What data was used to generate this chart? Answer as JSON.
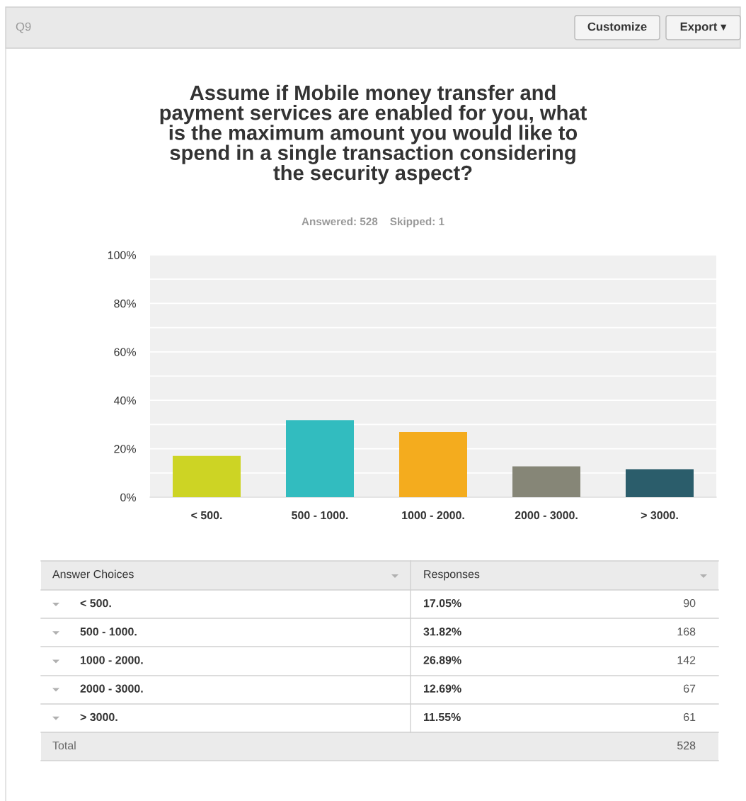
{
  "chart_data": {
    "type": "bar",
    "title": "Assume if Mobile money transfer and\npayment services are enabled for you, what\nis the maximum amount you would like to\nspend in a single transaction considering\nthe security aspect?",
    "subtitle": "Answered: 528    Skipped: 1",
    "categories": [
      "< 500.",
      "500 - 1000.",
      "1000 - 2000.",
      "2000 - 3000.",
      "> 3000."
    ],
    "values": [
      17.05,
      31.82,
      26.89,
      12.69,
      11.55
    ],
    "colors": [
      "#cdd424",
      "#32bcbf",
      "#f4ac1e",
      "#868677",
      "#2b5d6b"
    ],
    "ylim": [
      0,
      100
    ],
    "yticks": [
      {
        "value": 0,
        "label": "0%"
      },
      {
        "value": 10,
        "label": null
      },
      {
        "value": 20,
        "label": "20%"
      },
      {
        "value": 30,
        "label": null
      },
      {
        "value": 40,
        "label": "40%"
      },
      {
        "value": 50,
        "label": null
      },
      {
        "value": 60,
        "label": "60%"
      },
      {
        "value": 70,
        "label": null
      },
      {
        "value": 80,
        "label": "80%"
      },
      {
        "value": 90,
        "label": null
      },
      {
        "value": 100,
        "label": "100%"
      }
    ],
    "grid": "y",
    "annotations": [
      "Q9",
      "Customize",
      "Export ▾",
      "Answer Choices",
      "Responses",
      "90",
      "168",
      "142",
      "67",
      "61",
      "Total",
      "528",
      "17.05%",
      "31.82%",
      "26.89%",
      "12.69%",
      "11.55%"
    ]
  }
}
